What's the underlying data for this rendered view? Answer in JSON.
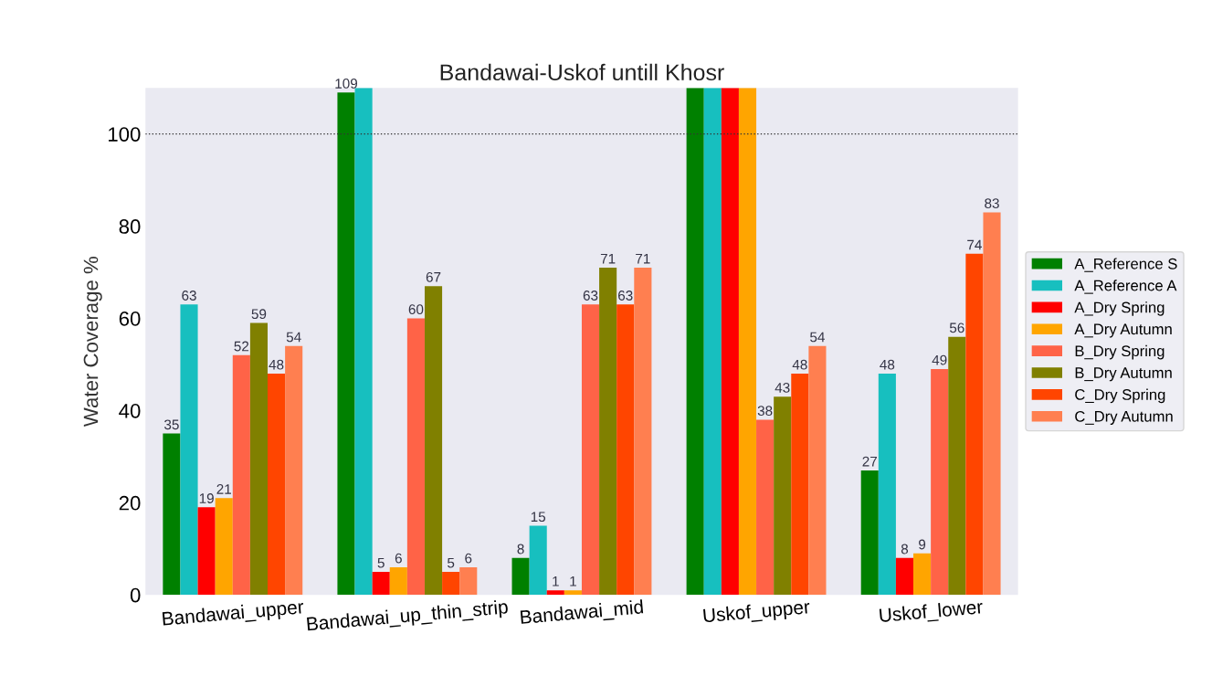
{
  "chart_data": {
    "type": "bar",
    "title": "Bandawai-Uskof untill Khosr",
    "ylabel": "Water Coverage %",
    "categories": [
      "Bandawai_upper",
      "Bandawai_up_thin_strip",
      "Bandawai_mid",
      "Uskof_upper",
      "Uskof_lower"
    ],
    "series": [
      {
        "name": "A_Reference S",
        "color": "#008000",
        "values": [
          35,
          109,
          8,
          110,
          27
        ],
        "value_labels": [
          "35",
          "109",
          "8",
          null,
          "27"
        ]
      },
      {
        "name": "A_Reference A",
        "color": "#17bfbf",
        "values": [
          63,
          110,
          15,
          110,
          48
        ],
        "value_labels": [
          "63",
          null,
          "15",
          null,
          "48"
        ]
      },
      {
        "name": "A_Dry Spring",
        "color": "#ff0000",
        "values": [
          19,
          5,
          1,
          110,
          8
        ],
        "value_labels": [
          "19",
          "5",
          "1",
          null,
          "8"
        ]
      },
      {
        "name": "A_Dry Autumn",
        "color": "#ffa500",
        "values": [
          21,
          6,
          1,
          110,
          9
        ],
        "value_labels": [
          "21",
          "6",
          "1",
          null,
          "9"
        ]
      },
      {
        "name": "B_Dry Spring",
        "color": "#ff6347",
        "values": [
          52,
          60,
          63,
          38,
          49
        ],
        "value_labels": [
          "52",
          "60",
          "63",
          "38",
          "49"
        ]
      },
      {
        "name": "B_Dry Autumn",
        "color": "#808000",
        "values": [
          59,
          67,
          71,
          43,
          56
        ],
        "value_labels": [
          "59",
          "67",
          "71",
          "43",
          "56"
        ]
      },
      {
        "name": "C_Dry Spring",
        "color": "#ff4500",
        "values": [
          48,
          5,
          63,
          48,
          74
        ],
        "value_labels": [
          "48",
          "5",
          "63",
          "48",
          "74"
        ]
      },
      {
        "name": "C_Dry Autumn",
        "color": "#ff7f50",
        "values": [
          54,
          6,
          71,
          54,
          83
        ],
        "value_labels": [
          "54",
          "6",
          "71",
          "54",
          "83"
        ]
      }
    ],
    "ylim": [
      0,
      110
    ],
    "yticks": [
      0,
      20,
      40,
      60,
      80,
      100
    ],
    "ref_lines": [
      {
        "axis": "y",
        "value": 100,
        "color": "#333333",
        "line_style": "dotted"
      }
    ],
    "grid": false,
    "legend": "right"
  }
}
